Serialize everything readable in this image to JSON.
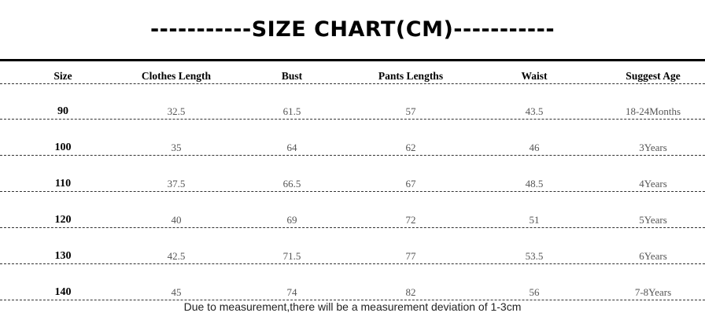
{
  "title": "-----------SIZE CHART(CM)-----------",
  "headers": [
    "Size",
    "Clothes Length",
    "Bust",
    "Pants Lengths",
    "Waist",
    "Suggest Age"
  ],
  "rows": [
    [
      "90",
      "32.5",
      "61.5",
      "57",
      "43.5",
      "18-24Months"
    ],
    [
      "100",
      "35",
      "64",
      "62",
      "46",
      "3Years"
    ],
    [
      "110",
      "37.5",
      "66.5",
      "67",
      "48.5",
      "4Years"
    ],
    [
      "120",
      "40",
      "69",
      "72",
      "51",
      "5Years"
    ],
    [
      "130",
      "42.5",
      "71.5",
      "77",
      "53.5",
      "6Years"
    ],
    [
      "140",
      "45",
      "74",
      "82",
      "56",
      "7-8Years"
    ]
  ],
  "note": "Due to measurement,there will be a measurement deviation of 1-3cm"
}
